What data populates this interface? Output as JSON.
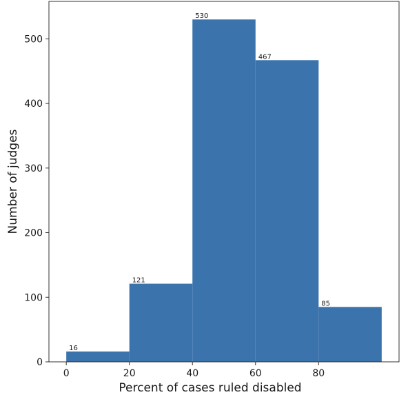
{
  "chart_data": {
    "type": "bar",
    "title": "",
    "xlabel": "Percent of cases ruled disabled",
    "ylabel": "Number of judges",
    "bins": [
      {
        "x0": 0,
        "x1": 20,
        "value": 16
      },
      {
        "x0": 20,
        "x1": 40,
        "value": 121
      },
      {
        "x0": 40,
        "x1": 60,
        "value": 530
      },
      {
        "x0": 60,
        "x1": 80,
        "value": 467
      },
      {
        "x0": 80,
        "x1": 100,
        "value": 85
      }
    ],
    "data_labels": [
      "16",
      "121",
      "530",
      "467",
      "85"
    ],
    "xticks": [
      0,
      20,
      40,
      60,
      80
    ],
    "yticks": [
      0,
      100,
      200,
      300,
      400,
      500
    ],
    "xlim": [
      -5.5,
      105.5
    ],
    "ylim": [
      0,
      558
    ],
    "grid": false,
    "bar_color": "#3b73ad"
  }
}
